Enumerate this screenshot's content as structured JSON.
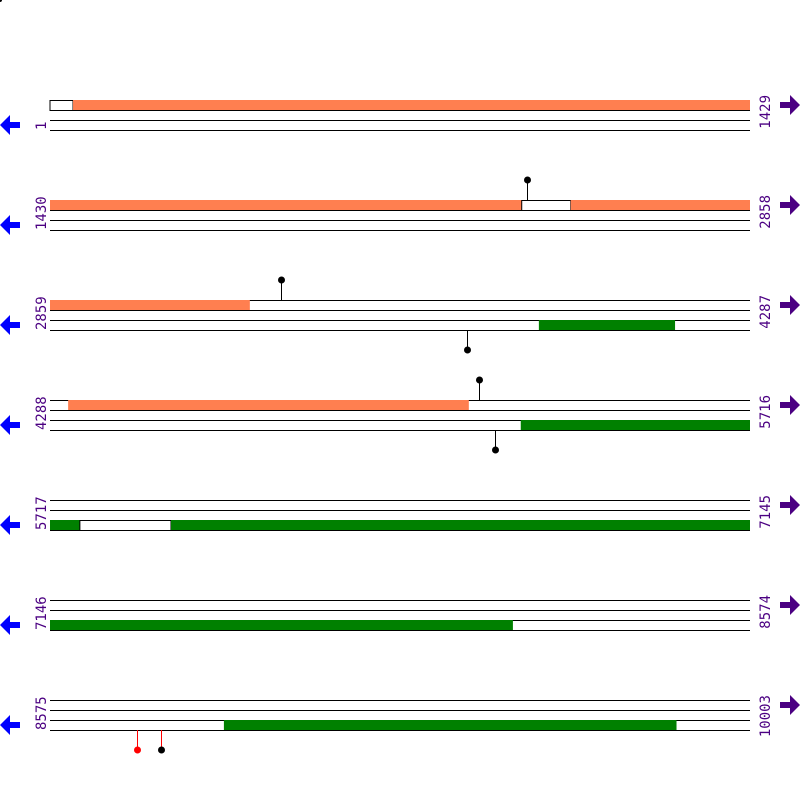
{
  "colors": {
    "forward_feature": "#ff7f50",
    "reverse_feature": "#008000",
    "forward_arrow": "#4b0082",
    "reverse_arrow": "#0000ff",
    "label": "#4b0082",
    "pin": "#000000",
    "pin_highlight": "#ff0000",
    "pin_stem_highlight": "#ff0000"
  },
  "icons": {
    "forward": "arrow-right-icon",
    "reverse": "arrow-left-icon"
  },
  "rows": [
    {
      "start_label": "1",
      "end_label": "1429",
      "start": 1,
      "end": 1429,
      "features": [
        {
          "track": "top",
          "type": "gap",
          "from": 1,
          "to": 48
        },
        {
          "track": "top",
          "type": "fill",
          "from": 48,
          "to": 1429
        }
      ],
      "pins": []
    },
    {
      "start_label": "1430",
      "end_label": "2858",
      "start": 1430,
      "end": 2858,
      "features": [
        {
          "track": "top",
          "type": "fill",
          "from": 1430,
          "to": 2393
        },
        {
          "track": "top",
          "type": "gap",
          "from": 2393,
          "to": 2493
        },
        {
          "track": "top",
          "type": "fill",
          "from": 2493,
          "to": 2858
        }
      ],
      "pins": [
        {
          "pos": 2403,
          "dir": "up",
          "highlight": false
        }
      ]
    },
    {
      "start_label": "2859",
      "end_label": "4287",
      "start": 2859,
      "end": 4287,
      "features": [
        {
          "track": "top",
          "type": "fill",
          "from": 2859,
          "to": 3267
        },
        {
          "track": "bottom",
          "type": "fill",
          "from": 3857,
          "to": 4135
        }
      ],
      "pins": [
        {
          "pos": 3330,
          "dir": "up",
          "highlight": false
        },
        {
          "pos": 3710,
          "dir": "down",
          "highlight": false
        }
      ]
    },
    {
      "start_label": "4288",
      "end_label": "5716",
      "start": 4288,
      "end": 5716,
      "features": [
        {
          "track": "top",
          "type": "fill",
          "from": 4325,
          "to": 5143
        },
        {
          "track": "bottom",
          "type": "fill",
          "from": 5249,
          "to": 5716
        }
      ],
      "pins": [
        {
          "pos": 5163,
          "dir": "up",
          "highlight": false
        },
        {
          "pos": 5196,
          "dir": "down",
          "highlight": false
        }
      ]
    },
    {
      "start_label": "5717",
      "end_label": "7145",
      "start": 5717,
      "end": 7145,
      "features": [
        {
          "track": "bottom",
          "type": "fill",
          "from": 5717,
          "to": 5778
        },
        {
          "track": "bottom",
          "type": "gap",
          "from": 5778,
          "to": 5964
        },
        {
          "track": "bottom",
          "type": "fill",
          "from": 5964,
          "to": 7145
        }
      ],
      "pins": []
    },
    {
      "start_label": "7146",
      "end_label": "8574",
      "start": 7146,
      "end": 8574,
      "features": [
        {
          "track": "bottom",
          "type": "fill",
          "from": 7146,
          "to": 8091
        }
      ],
      "pins": []
    },
    {
      "start_label": "8575",
      "end_label": "10003",
      "start": 8575,
      "end": 10003,
      "features": [
        {
          "track": "bottom",
          "type": "fill",
          "from": 8930,
          "to": 9854
        }
      ],
      "pins": [
        {
          "pos": 8752,
          "dir": "down",
          "highlight": true
        },
        {
          "pos": 8801,
          "dir": "down",
          "highlight": false
        }
      ]
    }
  ]
}
